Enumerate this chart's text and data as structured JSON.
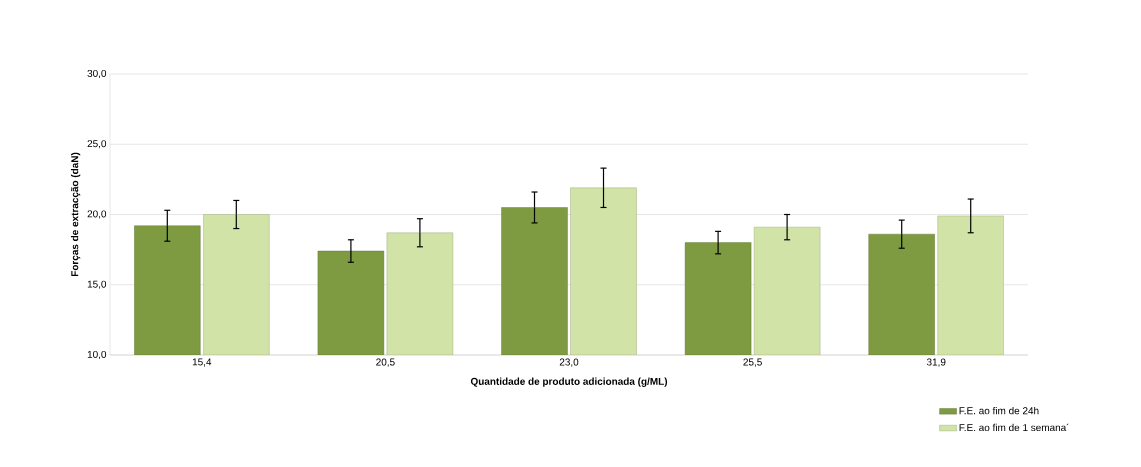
{
  "chart_data": {
    "type": "bar",
    "xlabel": "Quantidade de produto adicionada (g/ML)",
    "ylabel": "Forças de extracção (daN)",
    "categories": [
      "15,4",
      "20,5",
      "23,0",
      "25,5",
      "31,9"
    ],
    "series": [
      {
        "name": "F.E. ao fim de 24h",
        "color": "#7f9b42",
        "values": [
          19.2,
          17.4,
          20.5,
          18.0,
          18.6
        ],
        "errors": [
          1.1,
          0.8,
          1.1,
          0.8,
          1.0
        ]
      },
      {
        "name": "F.E. ao fim de 1 semana´",
        "color": "#d1e3a6",
        "values": [
          20.0,
          18.7,
          21.9,
          19.1,
          19.9
        ],
        "errors": [
          1.0,
          1.0,
          1.4,
          0.9,
          1.2
        ]
      }
    ],
    "ylim": [
      10,
      30
    ],
    "yticks": [
      {
        "value": 10,
        "label": "10,0"
      },
      {
        "value": 15,
        "label": "15,0"
      },
      {
        "value": 20,
        "label": "20,0"
      },
      {
        "value": 25,
        "label": "25,0"
      },
      {
        "value": 30,
        "label": "30,0"
      }
    ],
    "grid": "y",
    "legend": "bottom right"
  }
}
